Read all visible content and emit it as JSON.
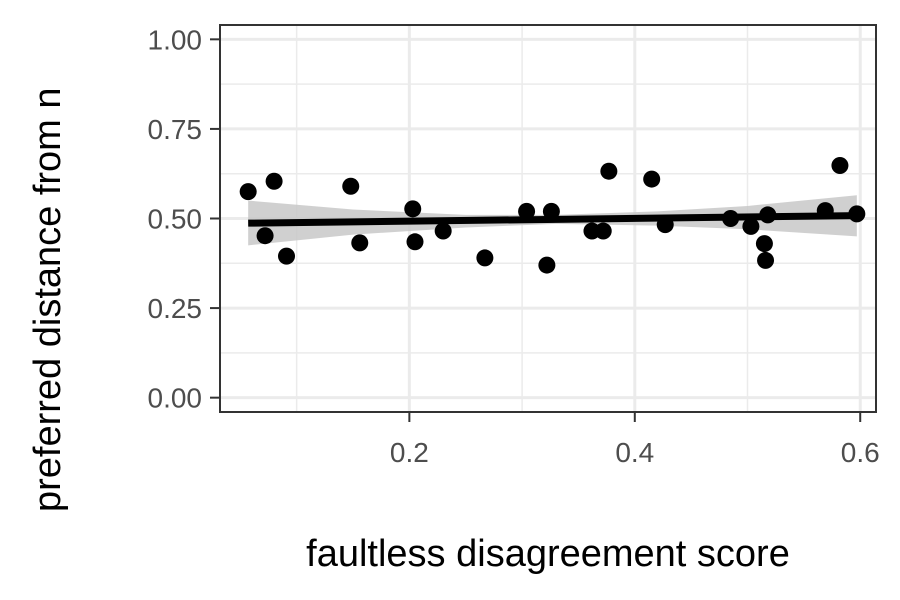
{
  "chart_data": {
    "type": "scatter",
    "title": "",
    "xlabel": "faultless disagreement score",
    "ylabel": "preferred distance from n",
    "xlim": [
      0.032,
      0.614
    ],
    "ylim": [
      -0.04,
      1.04
    ],
    "x_ticks": [
      0.2,
      0.4,
      0.6
    ],
    "x_tick_labels": [
      "0.2",
      "0.4",
      "0.6"
    ],
    "y_ticks": [
      0.0,
      0.25,
      0.5,
      0.75,
      1.0
    ],
    "y_tick_labels": [
      "0.00",
      "0.25",
      "0.50",
      "0.75",
      "1.00"
    ],
    "grid": true,
    "series": [
      {
        "points": [
          {
            "x": 0.057,
            "y": 0.575
          },
          {
            "x": 0.072,
            "y": 0.452
          },
          {
            "x": 0.08,
            "y": 0.604
          },
          {
            "x": 0.091,
            "y": 0.395
          },
          {
            "x": 0.148,
            "y": 0.59
          },
          {
            "x": 0.156,
            "y": 0.432
          },
          {
            "x": 0.203,
            "y": 0.527
          },
          {
            "x": 0.205,
            "y": 0.435
          },
          {
            "x": 0.23,
            "y": 0.465
          },
          {
            "x": 0.267,
            "y": 0.39
          },
          {
            "x": 0.304,
            "y": 0.52
          },
          {
            "x": 0.322,
            "y": 0.37
          },
          {
            "x": 0.326,
            "y": 0.52
          },
          {
            "x": 0.362,
            "y": 0.465
          },
          {
            "x": 0.372,
            "y": 0.465
          },
          {
            "x": 0.377,
            "y": 0.632
          },
          {
            "x": 0.415,
            "y": 0.61
          },
          {
            "x": 0.427,
            "y": 0.483
          },
          {
            "x": 0.485,
            "y": 0.5
          },
          {
            "x": 0.503,
            "y": 0.478
          },
          {
            "x": 0.515,
            "y": 0.43
          },
          {
            "x": 0.516,
            "y": 0.383
          },
          {
            "x": 0.518,
            "y": 0.51
          },
          {
            "x": 0.569,
            "y": 0.522
          },
          {
            "x": 0.582,
            "y": 0.648
          },
          {
            "x": 0.597,
            "y": 0.513
          }
        ]
      }
    ],
    "trend_line": {
      "x": [
        0.057,
        0.597
      ],
      "y": [
        0.487,
        0.508
      ]
    },
    "confidence_band": {
      "x": [
        0.057,
        0.15,
        0.25,
        0.33,
        0.42,
        0.5,
        0.597
      ],
      "upper": [
        0.55,
        0.525,
        0.51,
        0.51,
        0.52,
        0.535,
        0.565
      ],
      "lower": [
        0.425,
        0.455,
        0.475,
        0.485,
        0.48,
        0.47,
        0.45
      ]
    },
    "colors": {
      "points": "#000000",
      "trend_line": "#000000",
      "band": "#c8c8c8",
      "grid": "#ebebeb",
      "panel_border": "#333333",
      "tick_label": "#4d4d4d"
    }
  }
}
